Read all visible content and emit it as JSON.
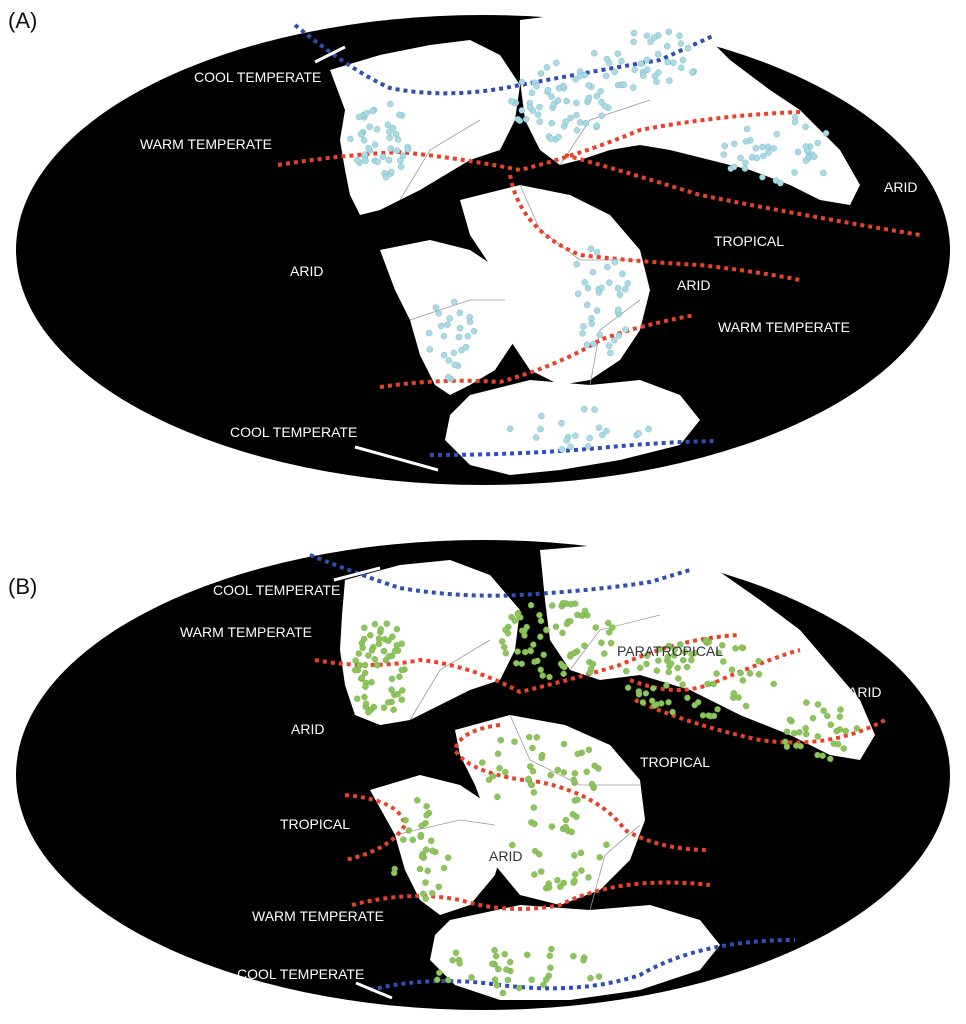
{
  "colors": {
    "ocean": "#000000",
    "land": "#ffffff",
    "cool_belt": "#2f4fb3",
    "warm_belt": "#e8432a",
    "points_a": "#a9dbe6",
    "points_b": "#8cc65a"
  },
  "panel_a": {
    "label": "(A)",
    "zones": {
      "cool_temperate_north": "COOL TEMPERATE",
      "warm_temperate_north": "WARM TEMPERATE",
      "arid_west": "ARID",
      "arid_east": "ARID",
      "tropical": "TROPICAL",
      "arid_south": "ARID",
      "warm_temperate_south": "WARM TEMPERATE",
      "cool_temperate_south": "COOL TEMPERATE"
    }
  },
  "panel_b": {
    "label": "(B)",
    "zones": {
      "cool_temperate_north": "COOL TEMPERATE",
      "warm_temperate_north": "WARM TEMPERATE",
      "paratropical": "PARATROPICAL",
      "arid_east": "ARID",
      "arid_west": "ARID",
      "tropical_east": "TROPICAL",
      "tropical_west": "TROPICAL",
      "arid_center": "ARID",
      "warm_temperate_south": "WARM TEMPERATE",
      "cool_temperate_south": "COOL TEMPERATE"
    }
  }
}
